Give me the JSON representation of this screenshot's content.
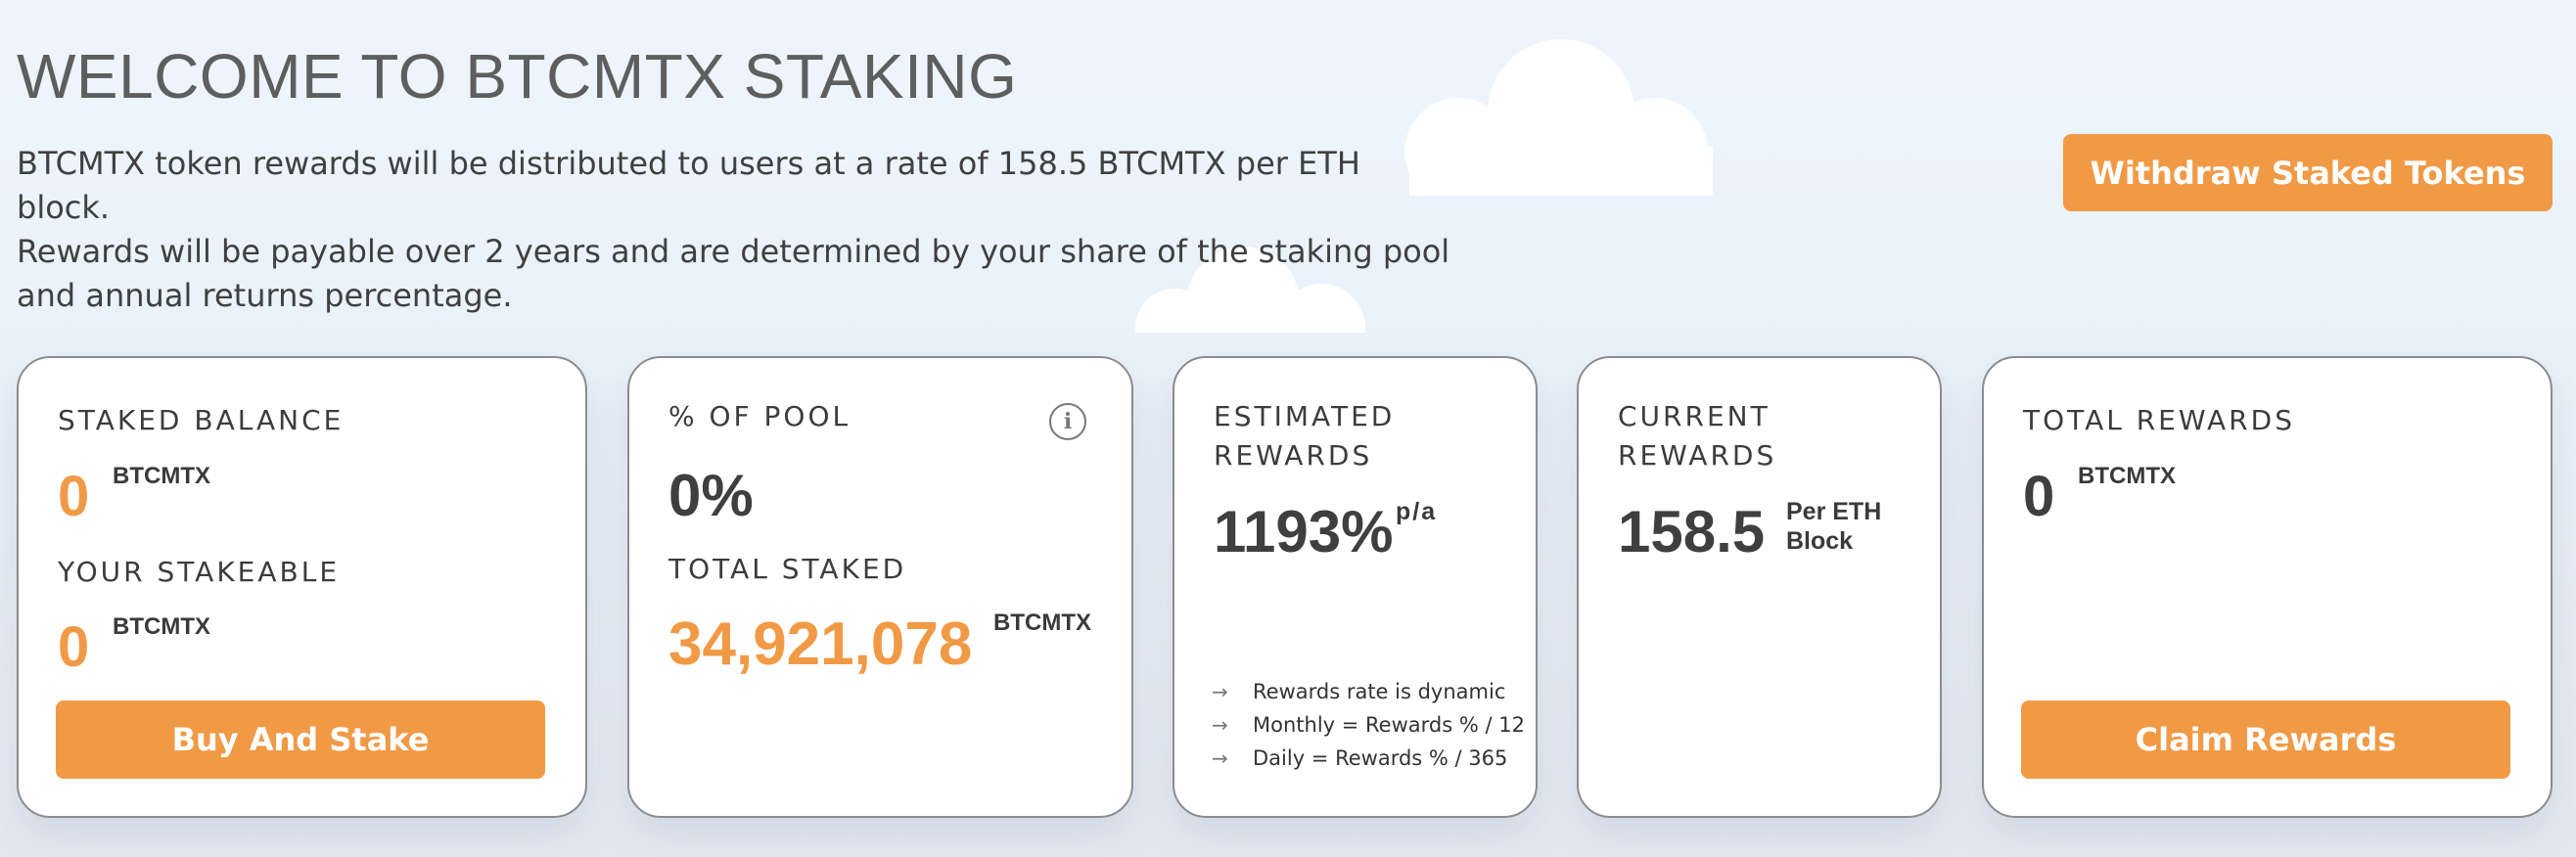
{
  "header": {
    "title": "WELCOME TO BTCMTX STAKING",
    "description": [
      "BTCMTX token rewards will be distributed to users at a rate of 158.5 BTCMTX per ETH block.",
      "Rewards will be payable over 2 years and are determined by your share of the staking pool",
      "and annual returns percentage."
    ],
    "withdraw_label": "Withdraw Staked Tokens"
  },
  "cards": {
    "balance": {
      "staked_label": "STAKED BALANCE",
      "staked_value": "0",
      "staked_unit": "BTCMTX",
      "stakeable_label": "YOUR STAKEABLE",
      "stakeable_value": "0",
      "stakeable_unit": "BTCMTX",
      "button_label": "Buy And Stake"
    },
    "pool": {
      "pool_label": "% OF POOL",
      "pool_value": "0%",
      "info_icon": "info-icon",
      "total_label": "TOTAL STAKED",
      "total_value": "34,921,078",
      "total_unit": "BTCMTX"
    },
    "estimated": {
      "label_line1": "ESTIMATED",
      "label_line2": "REWARDS",
      "value": "1193%",
      "unit": "p/a",
      "notes": [
        "Rewards rate is dynamic",
        "Monthly = Rewards % / 12",
        "Daily = Rewards % / 365"
      ]
    },
    "current": {
      "label_line1": "CURRENT",
      "label_line2": "REWARDS",
      "value": "158.5",
      "unit_line1": "Per ETH",
      "unit_line2": "Block"
    },
    "total": {
      "label": "TOTAL REWARDS",
      "value": "0",
      "unit": "BTCMTX",
      "button_label": "Claim Rewards"
    }
  },
  "colors": {
    "accent": "#f19a46",
    "card_border": "#8c8c8c",
    "text_dark": "#3f3f3f"
  }
}
